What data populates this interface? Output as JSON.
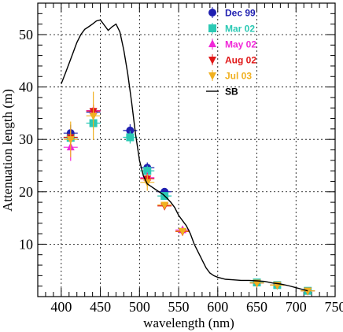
{
  "chart_data": {
    "type": "scatter",
    "xlabel": "wavelength (nm)",
    "ylabel": "Attenuation length (m)",
    "xlim": [
      370,
      750
    ],
    "ylim": [
      0,
      56
    ],
    "x_ticks": [
      "400",
      "450",
      "500",
      "550",
      "600",
      "650",
      "700",
      "750"
    ],
    "y_ticks": [
      "10",
      "20",
      "30",
      "40",
      "50"
    ],
    "grid": true,
    "legend_position": "top-right",
    "series": [
      {
        "name": "Dec 99",
        "color": "#1f1fb0",
        "marker": "circle",
        "points": [
          [
            412,
            31.2,
            1.6
          ],
          [
            441,
            35.2,
            1.0
          ],
          [
            488,
            31.7,
            1.2
          ],
          [
            510,
            24.6,
            1.0
          ],
          [
            532,
            20.0,
            0.6
          ]
        ]
      },
      {
        "name": "Mar 02",
        "color": "#2bc9b4",
        "marker": "square",
        "points": [
          [
            412,
            30.3,
            1.4
          ],
          [
            441,
            33.1,
            1.2
          ],
          [
            488,
            30.4,
            1.2
          ],
          [
            510,
            24.0,
            1.0
          ],
          [
            532,
            19.2,
            0.6
          ],
          [
            650,
            2.7,
            0.3
          ],
          [
            676,
            2.2,
            0.3
          ],
          [
            715,
            1.1,
            0.2
          ]
        ]
      },
      {
        "name": "May 02",
        "color": "#f028d8",
        "marker": "triangle-up",
        "points": [
          [
            412,
            28.5,
            2.6
          ],
          [
            441,
            35.5,
            1.2
          ],
          [
            510,
            22.7,
            1.0
          ],
          [
            555,
            12.7,
            0.5
          ]
        ]
      },
      {
        "name": "Aug 02",
        "color": "#e01818",
        "marker": "triangle-down",
        "points": [
          [
            412,
            30.4,
            1.6
          ],
          [
            441,
            35.4,
            1.2
          ],
          [
            510,
            22.5,
            1.0
          ],
          [
            532,
            17.3,
            0.5
          ],
          [
            555,
            12.4,
            0.5
          ],
          [
            650,
            2.6,
            0.3
          ],
          [
            676,
            2.2,
            0.3
          ],
          [
            715,
            1.1,
            0.2
          ]
        ]
      },
      {
        "name": "Jul 03",
        "color": "#f0b020",
        "marker": "triangle-down",
        "points": [
          [
            412,
            30.0,
            3.4
          ],
          [
            441,
            34.5,
            4.6
          ],
          [
            510,
            21.8,
            1.6
          ],
          [
            532,
            17.5,
            0.6
          ],
          [
            555,
            12.5,
            0.5
          ],
          [
            650,
            2.6,
            0.3
          ],
          [
            676,
            2.2,
            0.3
          ],
          [
            715,
            1.1,
            0.2
          ]
        ]
      },
      {
        "name": "SB",
        "color": "#000000",
        "marker": "line",
        "x": [
          400,
          405,
          410,
          415,
          420,
          425,
          430,
          435,
          440,
          445,
          450,
          455,
          460,
          465,
          470,
          475,
          480,
          485,
          490,
          495,
          500,
          505,
          510,
          515,
          520,
          525,
          530,
          535,
          540,
          545,
          550,
          555,
          560,
          565,
          570,
          575,
          580,
          585,
          590,
          595,
          600,
          610,
          620,
          630,
          640,
          650,
          660,
          670,
          680,
          690,
          700,
          710,
          715
        ],
        "y": [
          40.6,
          42.5,
          44.5,
          46.5,
          48.5,
          50.0,
          51.0,
          51.5,
          52.0,
          52.6,
          52.8,
          51.8,
          50.8,
          51.5,
          52.0,
          50.5,
          47.0,
          42.5,
          37.0,
          31.0,
          26.0,
          23.0,
          21.5,
          21.0,
          20.5,
          20.0,
          19.5,
          18.8,
          18.0,
          17.0,
          15.5,
          14.5,
          13.5,
          12.0,
          10.0,
          8.5,
          7.0,
          5.5,
          4.5,
          4.0,
          3.7,
          3.3,
          3.2,
          3.1,
          3.1,
          3.0,
          2.9,
          2.6,
          2.4,
          2.1,
          1.7,
          1.3,
          1.1
        ]
      }
    ]
  }
}
